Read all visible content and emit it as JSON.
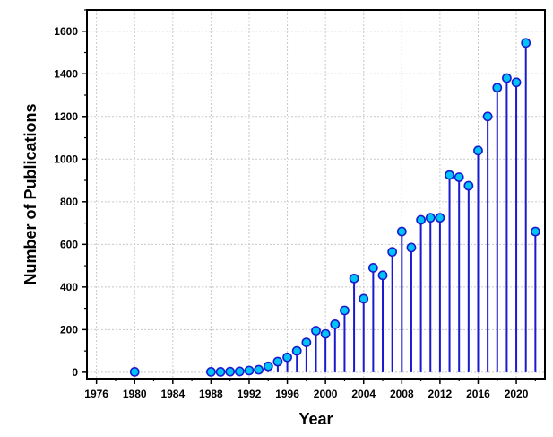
{
  "chart_data": {
    "type": "scatter",
    "style": "stem",
    "xlabel": "Year",
    "ylabel": "Number of Publications",
    "xlim": [
      1975,
      2023
    ],
    "ylim": [
      -30,
      1700
    ],
    "x_ticks": [
      1976,
      1980,
      1984,
      1988,
      1992,
      1996,
      2000,
      2004,
      2008,
      2012,
      2016,
      2020
    ],
    "y_ticks": [
      0,
      200,
      400,
      600,
      800,
      1000,
      1200,
      1400,
      1600
    ],
    "x_tick_labels": [
      "1976",
      "1980",
      "1984",
      "1988",
      "1992",
      "1996",
      "2000",
      "2004",
      "2008",
      "2012",
      "2016",
      "2020"
    ],
    "y_tick_labels": [
      "0",
      "200",
      "400",
      "600",
      "800",
      "1000",
      "1200",
      "1400",
      "1600"
    ],
    "grid": true,
    "colors": {
      "stem": "#1a1ad0",
      "marker_fill": "#00c4f5",
      "marker_edge": "#1a1ad0"
    },
    "x": [
      1980,
      1988,
      1989,
      1990,
      1991,
      1992,
      1993,
      1994,
      1995,
      1996,
      1997,
      1998,
      1999,
      2000,
      2001,
      2002,
      2003,
      2004,
      2005,
      2006,
      2007,
      2008,
      2009,
      2010,
      2011,
      2012,
      2013,
      2014,
      2015,
      2016,
      2017,
      2018,
      2019,
      2020,
      2021,
      2022
    ],
    "y": [
      2,
      2,
      2,
      3,
      4,
      8,
      12,
      28,
      50,
      70,
      100,
      140,
      195,
      180,
      225,
      290,
      440,
      345,
      490,
      455,
      565,
      660,
      585,
      715,
      725,
      725,
      925,
      915,
      875,
      1040,
      1200,
      1335,
      1380,
      1360,
      1545,
      660
    ]
  }
}
